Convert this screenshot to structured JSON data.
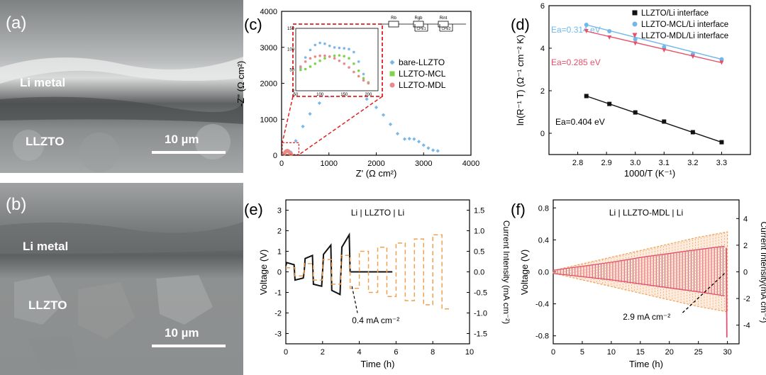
{
  "sem_panels": [
    {
      "panel_label": "(a)",
      "layer_top": "Li metal",
      "layer_bottom": "LLZTO",
      "scale_bar": "10 µm"
    },
    {
      "panel_label": "(b)",
      "layer_top": "Li metal",
      "layer_bottom": "LLZTO",
      "scale_bar": "10 µm"
    }
  ],
  "chart_data": [
    {
      "panel": "(c)",
      "type": "scatter",
      "xlabel": "Z' (Ω cm²)",
      "ylabel": "-Z'' (Ω cm²)",
      "xlim": [
        0,
        4000
      ],
      "ylim": [
        0,
        4000
      ],
      "x_ticks": [
        0,
        1000,
        2000,
        3000,
        4000
      ],
      "y_ticks": [
        0,
        1000,
        2000,
        3000,
        4000
      ],
      "legend_position": "middle-right",
      "circuit_labels": [
        "Rb",
        "Rgb",
        "Rint",
        "CPE1",
        "CPE2"
      ],
      "series": [
        {
          "name": "bare-LLZTO",
          "color": "#7ab8e8",
          "x": [
            200,
            300,
            450,
            600,
            800,
            1000,
            1200,
            1400,
            1600,
            1800,
            2000,
            2150,
            2300,
            2450,
            2600,
            2700,
            2800,
            2900,
            3000,
            3100,
            3200,
            3300
          ],
          "y": [
            80,
            400,
            800,
            1150,
            1450,
            1650,
            1740,
            1760,
            1700,
            1560,
            1330,
            1120,
            860,
            600,
            450,
            460,
            450,
            380,
            280,
            200,
            140,
            120
          ]
        },
        {
          "name": "LLZTO-MCL",
          "color": "#7fd34a",
          "x": [
            60,
            80,
            100,
            120,
            140,
            160,
            180,
            200
          ],
          "y": [
            40,
            90,
            110,
            120,
            115,
            90,
            55,
            30
          ]
        },
        {
          "name": "LLZTO-MDL",
          "color": "#e88a8a",
          "x": [
            60,
            80,
            100,
            120,
            140,
            160,
            180,
            200
          ],
          "y": [
            45,
            95,
            118,
            125,
            118,
            95,
            60,
            35
          ]
        }
      ],
      "inset": {
        "xlim": [
          50,
          220
        ],
        "ylim": [
          0,
          150
        ],
        "x_ticks": [
          50,
          100,
          150,
          200
        ],
        "y_ticks": [
          0,
          50,
          100,
          150
        ],
        "series": [
          {
            "name": "bare-LLZTO",
            "color": "#7ab8e8",
            "x": [
              60,
              70,
              80,
              90,
              100,
              110,
              120,
              130,
              140,
              150,
              160,
              170,
              180,
              190,
              200
            ],
            "y": [
              55,
              80,
              98,
              110,
              115,
              113,
              108,
              104,
              103,
              102,
              100,
              93,
              70,
              40,
              20
            ]
          },
          {
            "name": "LLZTO-MCL",
            "color": "#7fd34a",
            "x": [
              60,
              70,
              80,
              90,
              100,
              110,
              120,
              130,
              140,
              150,
              160,
              170,
              180,
              190,
              200
            ],
            "y": [
              50,
              52,
              58,
              65,
              72,
              78,
              82,
              84,
              85,
              83,
              78,
              65,
              48,
              30,
              20
            ]
          },
          {
            "name": "LLZTO-MDL",
            "color": "#e88a8a",
            "x": [
              60,
              70,
              80,
              90,
              100,
              110,
              120,
              130,
              140,
              150,
              160,
              170,
              180,
              190,
              200
            ],
            "y": [
              58,
              70,
              78,
              82,
              84,
              84,
              82,
              78,
              72,
              65,
              56,
              45,
              35,
              25,
              18
            ]
          }
        ]
      }
    },
    {
      "panel": "(d)",
      "type": "scatter",
      "xlabel": "1000/T (K⁻¹)",
      "ylabel": "ln(R⁻¹ T) (Ω⁻¹ cm⁻² K)",
      "xlim": [
        2.7,
        3.4
      ],
      "ylim": [
        -1,
        6
      ],
      "x_ticks": [
        2.8,
        2.9,
        3.0,
        3.1,
        3.2,
        3.3
      ],
      "y_ticks": [
        0,
        2,
        4,
        6
      ],
      "legend_position": "top-right",
      "series": [
        {
          "name": "LLZTO/Li interface",
          "color": "#111111",
          "marker": "square",
          "x": [
            2.83,
            2.91,
            3.0,
            3.1,
            3.2,
            3.3
          ],
          "y": [
            1.75,
            1.38,
            0.98,
            0.55,
            0.05,
            -0.42
          ],
          "annotation": "Ea=0.404 eV"
        },
        {
          "name": "LLZTO-MCL/Li interface",
          "color": "#6fb8ec",
          "marker": "circle",
          "x": [
            2.83,
            2.91,
            3.0,
            3.1,
            3.2,
            3.3
          ],
          "y": [
            5.1,
            4.8,
            4.42,
            4.05,
            3.72,
            3.48
          ],
          "annotation": "Ea=0.314 eV"
        },
        {
          "name": "LLZTO-MDL/Li interface",
          "color": "#e8506a",
          "marker": "triangle-down",
          "x": [
            2.83,
            2.91,
            3.0,
            3.1,
            3.2,
            3.3
          ],
          "y": [
            4.8,
            4.5,
            4.22,
            3.9,
            3.6,
            3.32
          ],
          "annotation": "Ea=0.285 eV"
        }
      ]
    },
    {
      "panel": "(e)",
      "type": "line",
      "title": "Li | LLZTO | Li",
      "xlabel": "Time (h)",
      "ylabel": "Voltage (V)",
      "y2label": "Current Intensity (mA cm⁻²)",
      "xlim": [
        0,
        10
      ],
      "ylim": [
        -3.5,
        3.5
      ],
      "y2lim": [
        -1.75,
        1.75
      ],
      "x_ticks": [
        0,
        2,
        4,
        6,
        8,
        10
      ],
      "y_ticks": [
        -3,
        -2,
        -1,
        0,
        1,
        2,
        3
      ],
      "y2_ticks": [
        -1.5,
        -1.0,
        -0.5,
        0.0,
        0.5,
        1.0,
        1.5
      ],
      "annotation": "0.4 mA cm⁻²",
      "series": [
        {
          "name": "Voltage",
          "color": "#111111",
          "axis": "left",
          "x": [
            0,
            0.05,
            0.45,
            0.5,
            0.95,
            1.0,
            1.05,
            1.45,
            1.5,
            1.95,
            2.0,
            2.05,
            2.45,
            2.5,
            2.95,
            3.0,
            3.05,
            3.45,
            3.5,
            3.55,
            4.0,
            4.5,
            5.0,
            5.5,
            5.8
          ],
          "y": [
            0.3,
            0.45,
            0.35,
            -0.4,
            -0.3,
            0.0,
            0.65,
            0.8,
            -0.6,
            -0.7,
            0.0,
            0.85,
            1.3,
            -0.9,
            -1.1,
            0.0,
            1.2,
            1.8,
            0.0,
            0.0,
            0.0,
            0.0,
            0.0,
            0.0,
            0.0
          ]
        },
        {
          "name": "Current",
          "color": "#f0a050",
          "axis": "right",
          "dashed": true,
          "x": [
            0,
            0.5,
            0.5,
            1.0,
            1.0,
            1.5,
            1.5,
            2.0,
            2.0,
            2.5,
            2.5,
            3.0,
            3.0,
            3.5,
            3.5,
            4.0,
            4.0,
            4.5,
            4.5,
            5.0,
            5.0,
            5.5,
            5.5,
            6.0,
            6.0,
            6.5,
            6.5,
            7.0,
            7.0,
            7.5,
            7.5,
            8.0,
            8.0,
            8.5,
            8.5,
            9.0
          ],
          "y": [
            0.1,
            0.1,
            -0.1,
            -0.1,
            0.2,
            0.2,
            -0.2,
            -0.2,
            0.3,
            0.3,
            -0.3,
            -0.3,
            0.4,
            0.4,
            -0.4,
            -0.4,
            0.5,
            0.5,
            -0.5,
            -0.5,
            0.6,
            0.6,
            -0.6,
            -0.6,
            0.7,
            0.7,
            -0.7,
            -0.7,
            0.8,
            0.8,
            -0.8,
            -0.8,
            0.9,
            0.9,
            -0.9,
            -0.9
          ]
        }
      ]
    },
    {
      "panel": "(f)",
      "type": "line",
      "title": "Li | LLZTO-MDL | Li",
      "xlabel": "Time (h)",
      "ylabel": "Voltage (V)",
      "y2label": "Current Intensity(mA cm⁻²)",
      "xlim": [
        0,
        32
      ],
      "ylim": [
        -0.9,
        0.9
      ],
      "y2lim": [
        -5.4,
        5.4
      ],
      "x_ticks": [
        0,
        5,
        10,
        15,
        20,
        25,
        30
      ],
      "y_ticks": [
        -0.8,
        -0.4,
        0.0,
        0.4,
        0.8
      ],
      "y2_ticks": [
        -4,
        -2,
        0,
        2,
        4
      ],
      "annotation": "2.9 mA cm⁻²",
      "series": [
        {
          "name": "Voltage envelope",
          "color": "#e05070",
          "axis": "left",
          "x": [
            0,
            5,
            10,
            15,
            20,
            25,
            29.5,
            30
          ],
          "y_upper": [
            0.02,
            0.07,
            0.12,
            0.18,
            0.23,
            0.28,
            0.32,
            -0.02
          ],
          "y_lower": [
            -0.02,
            -0.06,
            -0.1,
            -0.15,
            -0.2,
            -0.25,
            -0.3,
            -0.8
          ]
        },
        {
          "name": "Current envelope",
          "color": "#f0a050",
          "axis": "right",
          "dashed": true,
          "x": [
            0,
            5,
            10,
            15,
            20,
            25,
            30
          ],
          "y_upper": [
            0.1,
            0.6,
            1.1,
            1.6,
            2.1,
            2.6,
            3.0
          ],
          "y_lower": [
            -0.1,
            -0.6,
            -1.1,
            -1.6,
            -2.1,
            -2.6,
            -3.0
          ]
        }
      ]
    }
  ]
}
